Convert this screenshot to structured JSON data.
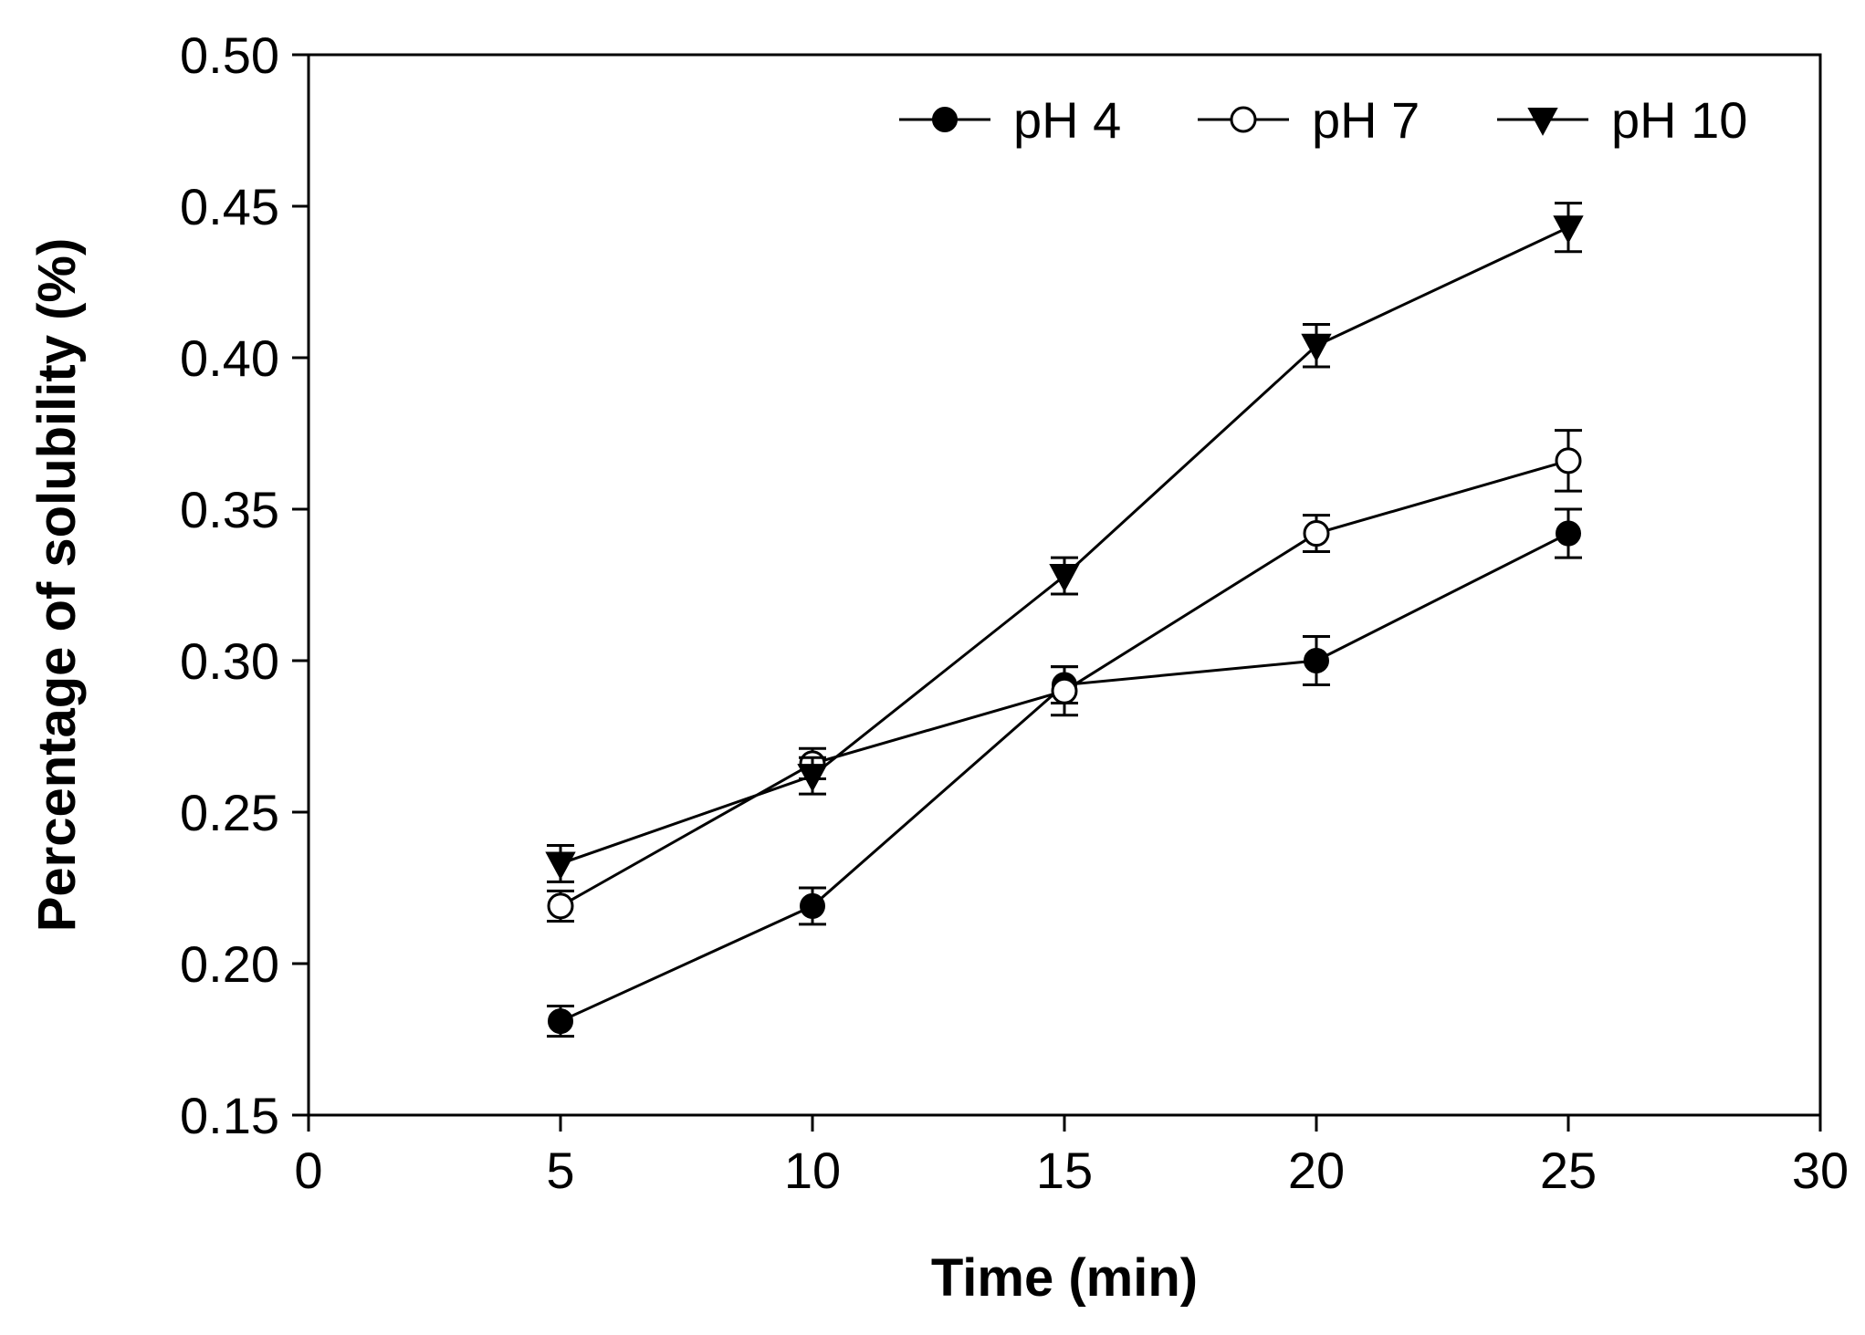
{
  "chart_data": {
    "type": "line",
    "title": "",
    "xlabel": "Time (min)",
    "ylabel": "Percentage of solubility (%)",
    "xlim": [
      0,
      30
    ],
    "ylim": [
      0.15,
      0.5
    ],
    "xticks": [
      0,
      5,
      10,
      15,
      20,
      25,
      30
    ],
    "xtick_labels": [
      "0",
      "5",
      "10",
      "15",
      "20",
      "25",
      "30"
    ],
    "yticks": [
      0.15,
      0.2,
      0.25,
      0.3,
      0.35,
      0.4,
      0.45,
      0.5
    ],
    "ytick_labels": [
      "0.15",
      "0.20",
      "0.25",
      "0.30",
      "0.35",
      "0.40",
      "0.45",
      "0.50"
    ],
    "grid": false,
    "legend_position": "top-right",
    "x": [
      5,
      10,
      15,
      20,
      25
    ],
    "series": [
      {
        "name": "pH 4",
        "marker": "filled-circle",
        "values": [
          0.181,
          0.219,
          0.292,
          0.3,
          0.342
        ],
        "errors": [
          0.005,
          0.006,
          0.006,
          0.008,
          0.008
        ]
      },
      {
        "name": "pH 7",
        "marker": "open-circle",
        "values": [
          0.219,
          0.266,
          0.29,
          0.342,
          0.366
        ],
        "errors": [
          0.005,
          0.005,
          0.008,
          0.006,
          0.01
        ]
      },
      {
        "name": "pH 10",
        "marker": "filled-triangle-down",
        "values": [
          0.233,
          0.262,
          0.328,
          0.404,
          0.443
        ],
        "errors": [
          0.006,
          0.006,
          0.006,
          0.007,
          0.008
        ]
      }
    ],
    "colors": {
      "line": "#000000",
      "marker_fill": "#000000",
      "open_marker_fill": "#ffffff"
    }
  }
}
